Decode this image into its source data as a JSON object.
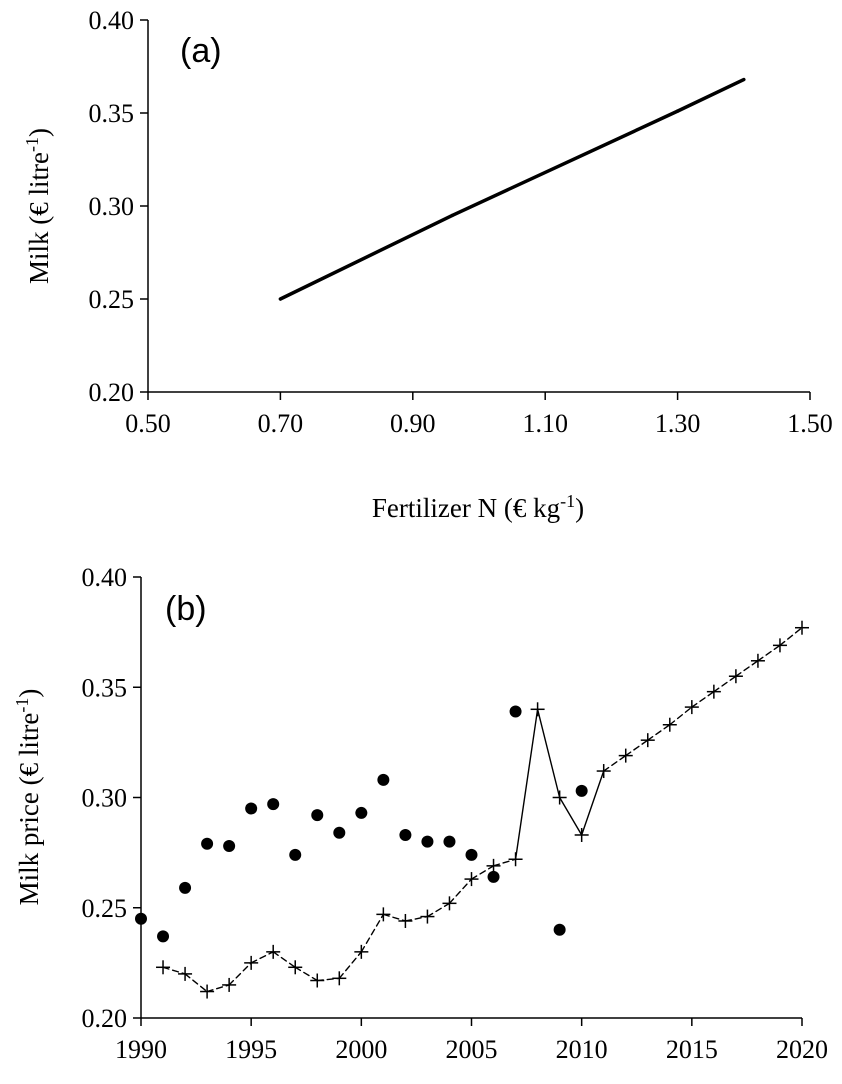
{
  "chart_data": [
    {
      "type": "line",
      "panel_label": "(a)",
      "xlabel": "Fertilizer N (€ kg-1)",
      "ylabel": "Milk (€ litre-1)",
      "xlim": [
        0.5,
        1.5
      ],
      "ylim": [
        0.2,
        0.4
      ],
      "x_ticks": [
        "0.50",
        "0.70",
        "0.90",
        "1.10",
        "1.30",
        "1.50"
      ],
      "y_ticks": [
        "0.20",
        "0.25",
        "0.30",
        "0.35",
        "0.40"
      ],
      "grid": false,
      "series": [
        {
          "x": [
            0.7,
            0.96,
            1.3,
            1.4
          ],
          "y": [
            0.25,
            0.295,
            0.351,
            0.368
          ],
          "style": "solid"
        }
      ]
    },
    {
      "type": "scatter",
      "panel_label": "(b)",
      "xlabel": "",
      "ylabel": "Milk price (€ litre-1)",
      "xlim": [
        1990,
        2020
      ],
      "ylim": [
        0.2,
        0.4
      ],
      "x_ticks": [
        "1990",
        "1995",
        "2000",
        "2005",
        "2010",
        "2015",
        "2020"
      ],
      "y_ticks": [
        "0.20",
        "0.25",
        "0.30",
        "0.35",
        "0.40"
      ],
      "grid": false,
      "series": [
        {
          "marker": "dot",
          "x": [
            1990,
            1991,
            1992,
            1993,
            1994,
            1995,
            1996,
            1997,
            1998,
            1999,
            2000,
            2001,
            2002,
            2003,
            2004,
            2005,
            2006,
            2007,
            2009,
            2010
          ],
          "y": [
            0.245,
            0.237,
            0.259,
            0.279,
            0.278,
            0.295,
            0.297,
            0.274,
            0.292,
            0.284,
            0.293,
            0.308,
            0.283,
            0.28,
            0.28,
            0.274,
            0.264,
            0.339,
            0.24,
            0.303
          ]
        },
        {
          "marker": "plus",
          "line": "dashed",
          "solid_segment_x": [
            2007,
            2011
          ],
          "x": [
            1991,
            1992,
            1993,
            1994,
            1995,
            1996,
            1997,
            1998,
            1999,
            2000,
            2001,
            2002,
            2003,
            2004,
            2005,
            2006,
            2007,
            2008,
            2009,
            2010,
            2011,
            2012,
            2013,
            2014,
            2015,
            2016,
            2017,
            2018,
            2019,
            2020
          ],
          "y": [
            0.223,
            0.22,
            0.212,
            0.215,
            0.225,
            0.23,
            0.223,
            0.217,
            0.218,
            0.23,
            0.247,
            0.244,
            0.246,
            0.252,
            0.263,
            0.269,
            0.272,
            0.34,
            0.3,
            0.283,
            0.312,
            0.319,
            0.326,
            0.333,
            0.341,
            0.348,
            0.355,
            0.362,
            0.369,
            0.377
          ]
        }
      ]
    }
  ]
}
